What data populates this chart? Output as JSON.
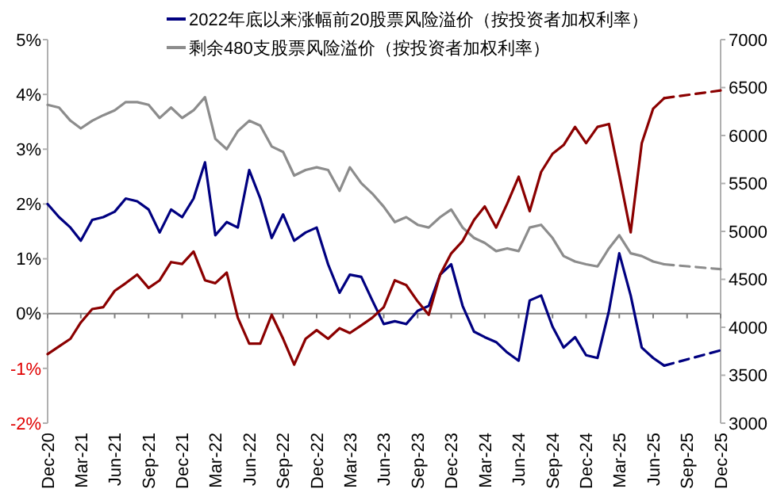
{
  "chart_data": {
    "type": "line",
    "legend": "top",
    "grid": false,
    "line_style": "solid",
    "xlim": [
      "2020-12",
      "2025-12"
    ],
    "xticks": [
      {
        "value": "2020-12",
        "label": "Dec-20"
      },
      {
        "value": "2021-03",
        "label": "Mar-21"
      },
      {
        "value": "2021-06",
        "label": "Jun-21"
      },
      {
        "value": "2021-09",
        "label": "Sep-21"
      },
      {
        "value": "2021-12",
        "label": "Dec-21"
      },
      {
        "value": "2022-03",
        "label": "Mar-22"
      },
      {
        "value": "2022-06",
        "label": "Jun-22"
      },
      {
        "value": "2022-09",
        "label": "Sep-22"
      },
      {
        "value": "2022-12",
        "label": "Dec-22"
      },
      {
        "value": "2023-03",
        "label": "Mar-23"
      },
      {
        "value": "2023-06",
        "label": "Jun-23"
      },
      {
        "value": "2023-09",
        "label": "Sep-23"
      },
      {
        "value": "2023-12",
        "label": "Dec-23"
      },
      {
        "value": "2024-03",
        "label": "Mar-24"
      },
      {
        "value": "2024-06",
        "label": "Jun-24"
      },
      {
        "value": "2024-09",
        "label": "Sep-24"
      },
      {
        "value": "2024-12",
        "label": "Dec-24"
      },
      {
        "value": "2025-03",
        "label": "Mar-25"
      },
      {
        "value": "2025-06",
        "label": "Jun-25"
      },
      {
        "value": "2025-09",
        "label": "Sep-25"
      },
      {
        "value": "2025-12",
        "label": "Dec-25"
      }
    ],
    "ylim": [
      -2,
      5
    ],
    "yticks": [
      {
        "value": -2,
        "label": "-2%"
      },
      {
        "value": -1,
        "label": "-1%"
      },
      {
        "value": 0,
        "label": "0%"
      },
      {
        "value": 1,
        "label": "1%"
      },
      {
        "value": 2,
        "label": "2%"
      },
      {
        "value": 3,
        "label": "3%"
      },
      {
        "value": 4,
        "label": "4%"
      },
      {
        "value": 5,
        "label": "5%"
      }
    ],
    "y2lim": [
      3000,
      7000
    ],
    "y2ticks": [
      3000,
      3500,
      4000,
      4500,
      5000,
      5500,
      6000,
      6500,
      7000
    ],
    "ref_lines": [
      {
        "axis": "y",
        "value": 0,
        "color": "#808080"
      }
    ],
    "series": [
      {
        "name": "2022年底以来涨幅前20股票风险溢价（按投资者加权利率）",
        "color": "#000080",
        "x": [
          "2020-12",
          "2021-01",
          "2021-02",
          "2021-03",
          "2021-04",
          "2021-05",
          "2021-06",
          "2021-07",
          "2021-08",
          "2021-09",
          "2021-10",
          "2021-11",
          "2021-12",
          "2022-01",
          "2022-02",
          "2022-03",
          "2022-04",
          "2022-05",
          "2022-06",
          "2022-07",
          "2022-08",
          "2022-09",
          "2022-10",
          "2022-11",
          "2022-12",
          "2023-01",
          "2023-02",
          "2023-03",
          "2023-04",
          "2023-05",
          "2023-06",
          "2023-07",
          "2023-08",
          "2023-09",
          "2023-10",
          "2023-11",
          "2023-12",
          "2024-01",
          "2024-02",
          "2024-03",
          "2024-04",
          "2024-05",
          "2024-06",
          "2024-07",
          "2024-08",
          "2024-09",
          "2024-10",
          "2024-11",
          "2024-12",
          "2025-01",
          "2025-02",
          "2025-03",
          "2025-04",
          "2025-05",
          "2025-06",
          "2025-07"
        ],
        "values": [
          2.0,
          1.76,
          1.57,
          1.33,
          1.71,
          1.76,
          1.86,
          2.1,
          2.05,
          1.9,
          1.48,
          1.9,
          1.76,
          2.1,
          2.76,
          1.43,
          1.67,
          1.57,
          2.62,
          2.1,
          1.38,
          1.81,
          1.33,
          1.48,
          1.57,
          0.9,
          0.38,
          0.71,
          0.67,
          0.24,
          -0.19,
          -0.14,
          -0.19,
          0.05,
          0.14,
          0.71,
          0.9,
          0.14,
          -0.33,
          -0.43,
          -0.52,
          -0.71,
          -0.86,
          0.24,
          0.33,
          -0.24,
          -0.62,
          -0.43,
          -0.76,
          -0.81,
          0.05,
          1.1,
          0.33,
          -0.62,
          -0.81,
          -0.95
        ]
      },
      {
        "name": "剩余480支股票风险溢价（按投资者加权利率）",
        "color": "#8c8c8c",
        "x": [
          "2020-12",
          "2021-01",
          "2021-02",
          "2021-03",
          "2021-04",
          "2021-05",
          "2021-06",
          "2021-07",
          "2021-08",
          "2021-09",
          "2021-10",
          "2021-11",
          "2021-12",
          "2022-01",
          "2022-02",
          "2022-03",
          "2022-04",
          "2022-05",
          "2022-06",
          "2022-07",
          "2022-08",
          "2022-09",
          "2022-10",
          "2022-11",
          "2022-12",
          "2023-01",
          "2023-02",
          "2023-03",
          "2023-04",
          "2023-05",
          "2023-06",
          "2023-07",
          "2023-08",
          "2023-09",
          "2023-10",
          "2023-11",
          "2023-12",
          "2024-01",
          "2024-02",
          "2024-03",
          "2024-04",
          "2024-05",
          "2024-06",
          "2024-07",
          "2024-08",
          "2024-09",
          "2024-10",
          "2024-11",
          "2024-12",
          "2025-01",
          "2025-02",
          "2025-03",
          "2025-04",
          "2025-05",
          "2025-06",
          "2025-07"
        ],
        "values": [
          3.81,
          3.76,
          3.52,
          3.38,
          3.52,
          3.62,
          3.71,
          3.86,
          3.86,
          3.81,
          3.57,
          3.76,
          3.57,
          3.71,
          3.95,
          3.19,
          3.0,
          3.33,
          3.52,
          3.43,
          3.05,
          2.95,
          2.52,
          2.62,
          2.67,
          2.62,
          2.24,
          2.67,
          2.38,
          2.19,
          1.95,
          1.67,
          1.76,
          1.62,
          1.57,
          1.76,
          1.9,
          1.57,
          1.38,
          1.29,
          1.14,
          1.19,
          1.14,
          1.57,
          1.62,
          1.38,
          1.05,
          0.95,
          0.9,
          0.86,
          1.19,
          1.43,
          1.1,
          1.05,
          0.95,
          0.9
        ]
      },
      {
        "color": "#8b0000",
        "axis": "y2",
        "x": [
          "2020-12",
          "2021-01",
          "2021-02",
          "2021-03",
          "2021-04",
          "2021-05",
          "2021-06",
          "2021-07",
          "2021-08",
          "2021-09",
          "2021-10",
          "2021-11",
          "2021-12",
          "2022-01",
          "2022-02",
          "2022-03",
          "2022-04",
          "2022-05",
          "2022-06",
          "2022-07",
          "2022-08",
          "2022-09",
          "2022-10",
          "2022-11",
          "2022-12",
          "2023-01",
          "2023-02",
          "2023-03",
          "2023-04",
          "2023-05",
          "2023-06",
          "2023-07",
          "2023-08",
          "2023-09",
          "2023-10",
          "2023-11",
          "2023-12",
          "2024-01",
          "2024-02",
          "2024-03",
          "2024-04",
          "2024-05",
          "2024-06",
          "2024-07",
          "2024-08",
          "2024-09",
          "2024-10",
          "2024-11",
          "2024-12",
          "2025-01",
          "2025-02",
          "2025-03",
          "2025-04",
          "2025-05",
          "2025-06",
          "2025-07"
        ],
        "values": [
          3720,
          3800,
          3880,
          4050,
          4190,
          4210,
          4380,
          4460,
          4550,
          4410,
          4490,
          4680,
          4660,
          4790,
          4490,
          4460,
          4570,
          4100,
          3830,
          3830,
          4130,
          3880,
          3610,
          3880,
          3970,
          3880,
          3990,
          3940,
          4020,
          4100,
          4210,
          4490,
          4440,
          4270,
          4130,
          4550,
          4770,
          4900,
          5120,
          5260,
          5040,
          5290,
          5570,
          5210,
          5620,
          5810,
          5900,
          6090,
          5920,
          6090,
          6120,
          5590,
          4990,
          5920,
          6280,
          6390
        ]
      },
      {
        "color": "#000080",
        "line_style": "dashed",
        "x": [
          "2025-07",
          "2025-12"
        ],
        "values": [
          -0.95,
          -0.67
        ]
      },
      {
        "color": "#8c8c8c",
        "line_style": "dashed",
        "x": [
          "2025-07",
          "2025-12"
        ],
        "values": [
          0.9,
          0.81
        ]
      },
      {
        "color": "#8b0000",
        "line_style": "dashed",
        "axis": "y2",
        "x": [
          "2025-07",
          "2025-12"
        ],
        "values": [
          6390,
          6470
        ]
      }
    ]
  }
}
